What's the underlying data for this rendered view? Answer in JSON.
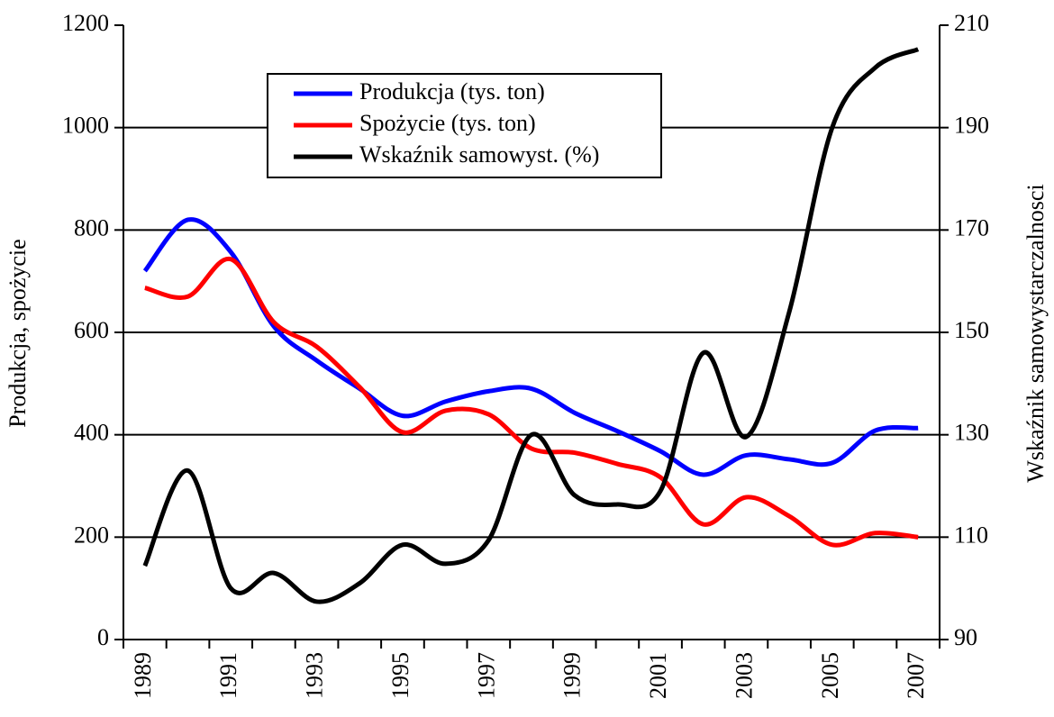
{
  "chart_data": {
    "type": "line",
    "ylabel": "Produkcja, spożycie",
    "y2label": "Wskaźnik samowystarczalnosci",
    "categories": [
      "1989",
      null,
      "1991",
      null,
      "1993",
      null,
      "1995",
      null,
      "1997",
      null,
      "1999",
      null,
      "2001",
      null,
      "2003",
      null,
      "2005",
      null,
      "2007"
    ],
    "series": [
      {
        "name": "Produkcja (tys. ton)",
        "color": "#0000ff",
        "values": [
          720,
          820,
          757,
          612,
          545,
          490,
          437,
          465,
          485,
          490,
          443,
          407,
          368,
          322,
          360,
          352,
          345,
          408,
          413
        ]
      },
      {
        "name": "Spożycie (tys. ton)",
        "color": "#ff0000",
        "values": [
          687,
          670,
          743,
          620,
          572,
          493,
          405,
          447,
          440,
          373,
          365,
          343,
          317,
          225,
          278,
          241,
          185,
          208,
          200
        ]
      },
      {
        "name": "Wskaźnik samowyst. (%)",
        "color": "#000000",
        "axis": "y2",
        "values": [
          104.4,
          123,
          100,
          103,
          97.4,
          101,
          108.5,
          104.8,
          109.4,
          130,
          118.2,
          116.4,
          119,
          146,
          129.6,
          154,
          190,
          201.7,
          205.3
        ]
      }
    ],
    "ylim": [
      0,
      1200
    ],
    "yticks": [
      0,
      200,
      400,
      600,
      800,
      1000,
      1200
    ],
    "y2lim": [
      90,
      210
    ],
    "y2ticks": [
      90,
      110,
      130,
      150,
      170,
      190,
      210
    ],
    "grid": true,
    "smooth": true,
    "legend": "upper left"
  }
}
